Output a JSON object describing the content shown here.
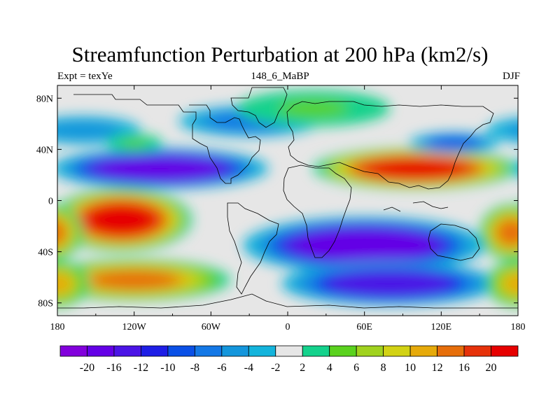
{
  "title": "Streamfunction Perturbation at 200 hPa (km2/s)",
  "subtitle_left": "Expt = texYe",
  "subtitle_center": "148_6_MaBP",
  "subtitle_right": "DJF",
  "lat_ticks": [
    "80N",
    "40N",
    "0",
    "40S",
    "80S"
  ],
  "lon_ticks": [
    "180",
    "120W",
    "60W",
    "0",
    "60E",
    "120E",
    "180"
  ],
  "colorbar": {
    "labels": [
      "-20",
      "-16",
      "-12",
      "-10",
      "-8",
      "-6",
      "-4",
      "-2",
      "2",
      "4",
      "6",
      "8",
      "10",
      "12",
      "16",
      "20"
    ],
    "colors": [
      "#8200dc",
      "#6400e6",
      "#4b14e6",
      "#1e1ee6",
      "#0a50e6",
      "#1478e6",
      "#1496dc",
      "#14b4dc",
      "#e6e6e6",
      "#14d28c",
      "#5ad21e",
      "#a0d21e",
      "#d2d214",
      "#e6aa0a",
      "#e66e0a",
      "#e6320a",
      "#e60000"
    ]
  },
  "chart_data": {
    "type": "heatmap",
    "title": "Streamfunction Perturbation at 200 hPa (km2/s)",
    "xlabel": "",
    "ylabel": "",
    "xlim": [
      -180,
      180
    ],
    "ylim": [
      -90,
      90
    ],
    "levels": [
      -20,
      -16,
      -12,
      -10,
      -8,
      -6,
      -4,
      -2,
      2,
      4,
      6,
      8,
      10,
      12,
      16,
      20
    ],
    "field_features": [
      {
        "lon": -100,
        "lat": 25,
        "value": -20
      },
      {
        "lon": -160,
        "lat": 55,
        "value": -6
      },
      {
        "lon": -30,
        "lat": 60,
        "value": -8
      },
      {
        "lon": -120,
        "lat": 45,
        "value": 4
      },
      {
        "lon": 100,
        "lat": 25,
        "value": 20
      },
      {
        "lon": 130,
        "lat": 45,
        "value": -10
      },
      {
        "lon": 20,
        "lat": 70,
        "value": 4
      },
      {
        "lon": -130,
        "lat": -15,
        "value": 20
      },
      {
        "lon": -120,
        "lat": -60,
        "value": 14
      },
      {
        "lon": 60,
        "lat": -35,
        "value": -20
      },
      {
        "lon": 80,
        "lat": -65,
        "value": -16
      },
      {
        "lon": 175,
        "lat": -25,
        "value": 12
      },
      {
        "lon": 180,
        "lat": -65,
        "value": 10
      }
    ]
  }
}
